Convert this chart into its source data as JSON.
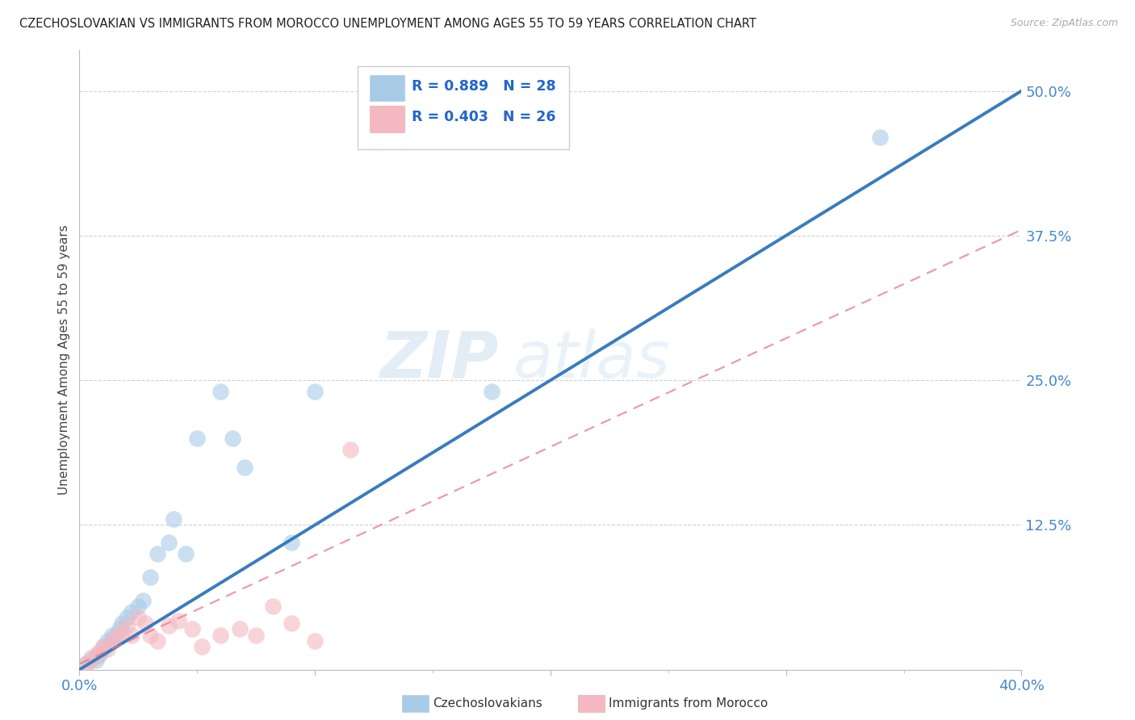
{
  "title": "CZECHOSLOVAKIAN VS IMMIGRANTS FROM MOROCCO UNEMPLOYMENT AMONG AGES 55 TO 59 YEARS CORRELATION CHART",
  "source": "Source: ZipAtlas.com",
  "ylabel": "Unemployment Among Ages 55 to 59 years",
  "watermark_zip": "ZIP",
  "watermark_atlas": "atlas",
  "xlim": [
    0.0,
    0.4
  ],
  "ylim": [
    0.0,
    0.535
  ],
  "xticks": [
    0.0,
    0.1,
    0.2,
    0.3,
    0.4
  ],
  "xticklabels": [
    "0.0%",
    "",
    "",
    "",
    "40.0%"
  ],
  "ytick_positions": [
    0.0,
    0.125,
    0.25,
    0.375,
    0.5
  ],
  "yticklabels": [
    "",
    "12.5%",
    "25.0%",
    "37.5%",
    "50.0%"
  ],
  "blue_R": "R = 0.889",
  "blue_N": "N = 28",
  "pink_R": "R = 0.403",
  "pink_N": "N = 26",
  "blue_color": "#a8cce8",
  "pink_color": "#f4b8c1",
  "blue_line_color": "#3a7bbf",
  "pink_line_color": "#e87a8a",
  "grid_color": "#cccccc",
  "title_color": "#222222",
  "axis_label_color": "#444444",
  "tick_color": "#4488cc",
  "legend_label_color": "#2266cc",
  "blue_scatter_x": [
    0.003,
    0.005,
    0.007,
    0.008,
    0.009,
    0.01,
    0.012,
    0.014,
    0.015,
    0.017,
    0.018,
    0.02,
    0.022,
    0.025,
    0.027,
    0.03,
    0.033,
    0.038,
    0.04,
    0.045,
    0.05,
    0.06,
    0.065,
    0.07,
    0.09,
    0.1,
    0.175,
    0.34
  ],
  "blue_scatter_y": [
    0.005,
    0.01,
    0.008,
    0.012,
    0.015,
    0.02,
    0.025,
    0.03,
    0.028,
    0.035,
    0.04,
    0.045,
    0.05,
    0.055,
    0.06,
    0.08,
    0.1,
    0.11,
    0.13,
    0.1,
    0.2,
    0.24,
    0.2,
    0.175,
    0.11,
    0.24,
    0.24,
    0.46
  ],
  "pink_scatter_x": [
    0.003,
    0.005,
    0.007,
    0.008,
    0.01,
    0.012,
    0.014,
    0.016,
    0.018,
    0.02,
    0.022,
    0.025,
    0.028,
    0.03,
    0.033,
    0.038,
    0.042,
    0.048,
    0.052,
    0.06,
    0.068,
    0.075,
    0.082,
    0.09,
    0.1,
    0.115
  ],
  "pink_scatter_y": [
    0.005,
    0.008,
    0.012,
    0.015,
    0.02,
    0.018,
    0.025,
    0.03,
    0.032,
    0.038,
    0.03,
    0.045,
    0.04,
    0.03,
    0.025,
    0.038,
    0.042,
    0.035,
    0.02,
    0.03,
    0.035,
    0.03,
    0.055,
    0.04,
    0.025,
    0.19
  ],
  "blue_line_x": [
    0.0,
    0.4
  ],
  "blue_line_y": [
    0.0,
    0.5
  ],
  "pink_line_x": [
    0.0,
    0.4
  ],
  "pink_line_y": [
    0.005,
    0.38
  ],
  "background_color": "#ffffff"
}
